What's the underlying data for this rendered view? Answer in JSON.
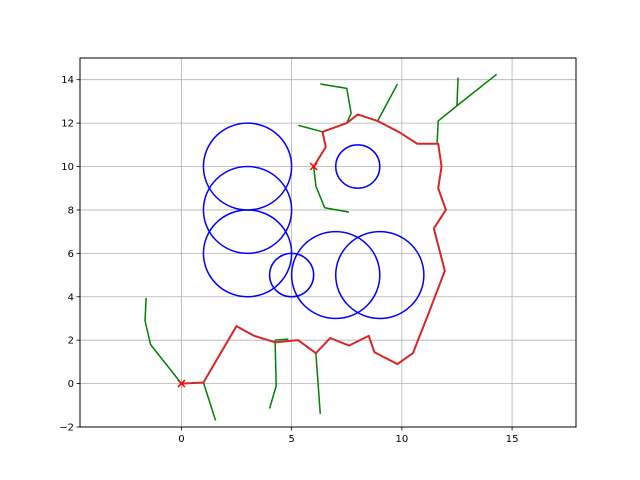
{
  "chart_data": {
    "type": "line",
    "title": "",
    "xlabel": "",
    "ylabel": "",
    "xlim": [
      -4.6,
      17.9
    ],
    "ylim": [
      -2,
      15
    ],
    "x_ticks": [
      0,
      5,
      10,
      15
    ],
    "y_ticks": [
      -2,
      0,
      2,
      4,
      6,
      8,
      10,
      12,
      14
    ],
    "grid": true,
    "colors": {
      "circles": "#0000ff",
      "tree": "#008000",
      "path": "#d62728",
      "markers": "#ff0000"
    },
    "circles": [
      {
        "cx": 3,
        "cy": 10,
        "r": 2
      },
      {
        "cx": 3,
        "cy": 8,
        "r": 2
      },
      {
        "cx": 3,
        "cy": 6,
        "r": 2
      },
      {
        "cx": 5,
        "cy": 5,
        "r": 1
      },
      {
        "cx": 7,
        "cy": 5,
        "r": 2
      },
      {
        "cx": 9,
        "cy": 5,
        "r": 2
      },
      {
        "cx": 8,
        "cy": 10,
        "r": 1
      }
    ],
    "tree_branches": [
      [
        [
          0,
          0
        ],
        [
          -1.4,
          1.8
        ],
        [
          -1.65,
          2.9
        ],
        [
          -1.6,
          3.95
        ]
      ],
      [
        [
          1,
          0.05
        ],
        [
          1.55,
          -1.7
        ]
      ],
      [
        [
          4.25,
          2.0
        ],
        [
          4.3,
          -0.1
        ],
        [
          4.0,
          -1.15
        ]
      ],
      [
        [
          4.25,
          2.0
        ],
        [
          4.85,
          2.05
        ]
      ],
      [
        [
          6.1,
          1.4
        ],
        [
          6.3,
          -1.4
        ]
      ],
      [
        [
          6,
          10
        ],
        [
          6.1,
          9.1
        ],
        [
          6.5,
          8.1
        ],
        [
          7.6,
          7.9
        ]
      ],
      [
        [
          6.4,
          11.6
        ],
        [
          5.3,
          11.9
        ]
      ],
      [
        [
          7.5,
          12.0
        ],
        [
          7.7,
          12.45
        ],
        [
          7.5,
          13.6
        ],
        [
          6.3,
          13.8
        ]
      ],
      [
        [
          8.9,
          12.1
        ],
        [
          9.8,
          13.8
        ]
      ],
      [
        [
          11.6,
          11.1
        ],
        [
          11.65,
          12.1
        ],
        [
          12.5,
          12.8
        ],
        [
          12.55,
          14.1
        ]
      ],
      [
        [
          12.5,
          12.8
        ],
        [
          14.3,
          14.25
        ]
      ]
    ],
    "path": [
      [
        0,
        0
      ],
      [
        1,
        0.05
      ],
      [
        2.5,
        2.65
      ],
      [
        3.3,
        2.2
      ],
      [
        4.25,
        1.9
      ],
      [
        5.3,
        2.0
      ],
      [
        6.1,
        1.4
      ],
      [
        6.75,
        2.1
      ],
      [
        7.6,
        1.75
      ],
      [
        8.5,
        2.2
      ],
      [
        8.75,
        1.45
      ],
      [
        9.8,
        0.9
      ],
      [
        10.5,
        1.4
      ],
      [
        11.2,
        3.2
      ],
      [
        11.95,
        5.2
      ],
      [
        11.45,
        7.15
      ],
      [
        12.0,
        8.0
      ],
      [
        11.65,
        9.0
      ],
      [
        11.8,
        10.0
      ],
      [
        11.65,
        11.05
      ],
      [
        10.7,
        11.05
      ],
      [
        9.85,
        11.6
      ],
      [
        8.9,
        12.1
      ],
      [
        8.0,
        12.4
      ],
      [
        7.5,
        12.0
      ],
      [
        6.4,
        11.6
      ],
      [
        6.55,
        10.9
      ],
      [
        6.0,
        10.0
      ]
    ],
    "markers": [
      {
        "x": 0,
        "y": 0
      },
      {
        "x": 6,
        "y": 10
      }
    ]
  }
}
